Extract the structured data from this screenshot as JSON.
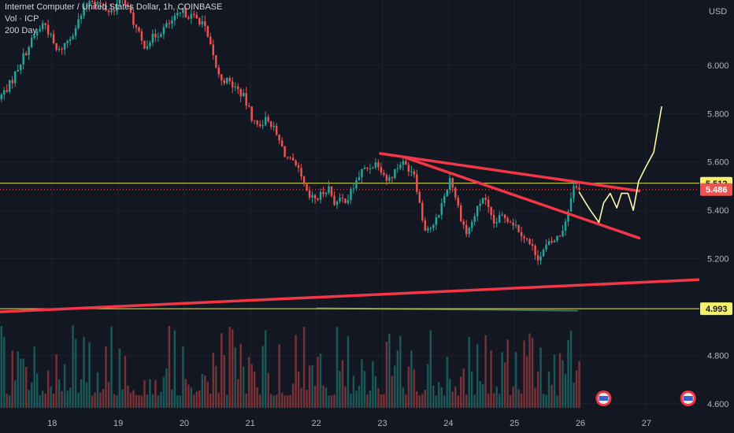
{
  "legend": {
    "symbol": "Internet Computer / United States Dollar, 1h, COINBASE",
    "volume_label": "Vol · ICP",
    "ma_label": "200 Day"
  },
  "colors": {
    "background": "#131722",
    "up": "#26a69a",
    "down": "#ef5350",
    "trendline": "#f23645",
    "hline": "#e8e85a",
    "projection": "#fff9a8",
    "axis_text": "#b2b5be",
    "ma": "#4a7a66"
  },
  "chart_data": {
    "type": "candlestick",
    "currency_label": "USD",
    "y_range": [
      4.57,
      6.27
    ],
    "x_range": [
      17.21,
      27.8
    ],
    "x_ticks": [
      "18",
      "19",
      "20",
      "21",
      "22",
      "23",
      "24",
      "25",
      "26",
      "27"
    ],
    "y_ticks": [
      "6.000",
      "5.800",
      "5.600",
      "5.400",
      "5.200",
      "4.800",
      "4.600"
    ],
    "price_labels": [
      {
        "text": "5.512",
        "value": 5.512,
        "style": "yellow"
      },
      {
        "text": "5.486",
        "value": 5.486,
        "style": "red"
      },
      {
        "text": "4.993",
        "value": 4.993,
        "style": "yellow"
      }
    ],
    "horizontal_lines": [
      5.512,
      4.993
    ],
    "current_price": 5.486,
    "trendlines": [
      {
        "x": [
          22.97,
          26.89
        ],
        "y": [
          5.635,
          5.48
        ]
      },
      {
        "x": [
          23.35,
          26.89
        ],
        "y": [
          5.618,
          5.285
        ]
      },
      {
        "x": [
          17.21,
          27.8
        ],
        "y": [
          4.98,
          5.113
        ]
      }
    ],
    "projection_path": {
      "x": [
        25.98,
        26.08,
        26.15,
        26.28,
        26.35,
        26.45,
        26.55,
        26.62,
        26.72,
        26.8,
        26.88,
        26.99,
        27.11,
        27.23
      ],
      "y": [
        5.475,
        5.43,
        5.4,
        5.35,
        5.43,
        5.47,
        5.41,
        5.47,
        5.47,
        5.4,
        5.52,
        5.58,
        5.64,
        5.83
      ]
    },
    "ma_200": {
      "x": [
        22.0,
        25.96
      ],
      "y": [
        4.995,
        4.985
      ]
    },
    "keypoints": [
      [
        17.21,
        5.86
      ],
      [
        17.4,
        5.93
      ],
      [
        17.55,
        6.02
      ],
      [
        17.75,
        6.12
      ],
      [
        17.9,
        6.18
      ],
      [
        18.1,
        6.05
      ],
      [
        18.3,
        6.12
      ],
      [
        18.6,
        6.28
      ],
      [
        18.9,
        6.22
      ],
      [
        19.1,
        6.28
      ],
      [
        19.4,
        6.08
      ],
      [
        19.7,
        6.15
      ],
      [
        20.0,
        6.22
      ],
      [
        20.3,
        6.18
      ],
      [
        20.55,
        5.95
      ],
      [
        20.7,
        5.93
      ],
      [
        20.9,
        5.88
      ],
      [
        21.1,
        5.75
      ],
      [
        21.3,
        5.78
      ],
      [
        21.55,
        5.63
      ],
      [
        21.75,
        5.56
      ],
      [
        21.9,
        5.45
      ],
      [
        22.05,
        5.45
      ],
      [
        22.2,
        5.5
      ],
      [
        22.3,
        5.43
      ],
      [
        22.5,
        5.45
      ],
      [
        22.7,
        5.56
      ],
      [
        22.95,
        5.6
      ],
      [
        23.1,
        5.52
      ],
      [
        23.3,
        5.6
      ],
      [
        23.5,
        5.56
      ],
      [
        23.65,
        5.33
      ],
      [
        23.8,
        5.33
      ],
      [
        23.95,
        5.45
      ],
      [
        24.05,
        5.54
      ],
      [
        24.2,
        5.38
      ],
      [
        24.3,
        5.3
      ],
      [
        24.45,
        5.4
      ],
      [
        24.55,
        5.46
      ],
      [
        24.7,
        5.34
      ],
      [
        24.85,
        5.38
      ],
      [
        25.0,
        5.35
      ],
      [
        25.15,
        5.3
      ],
      [
        25.3,
        5.24
      ],
      [
        25.4,
        5.2
      ],
      [
        25.5,
        5.25
      ],
      [
        25.6,
        5.27
      ],
      [
        25.72,
        5.3
      ],
      [
        25.82,
        5.38
      ],
      [
        25.9,
        5.5
      ],
      [
        25.98,
        5.486
      ]
    ],
    "volume_axis_max": 1.0
  }
}
